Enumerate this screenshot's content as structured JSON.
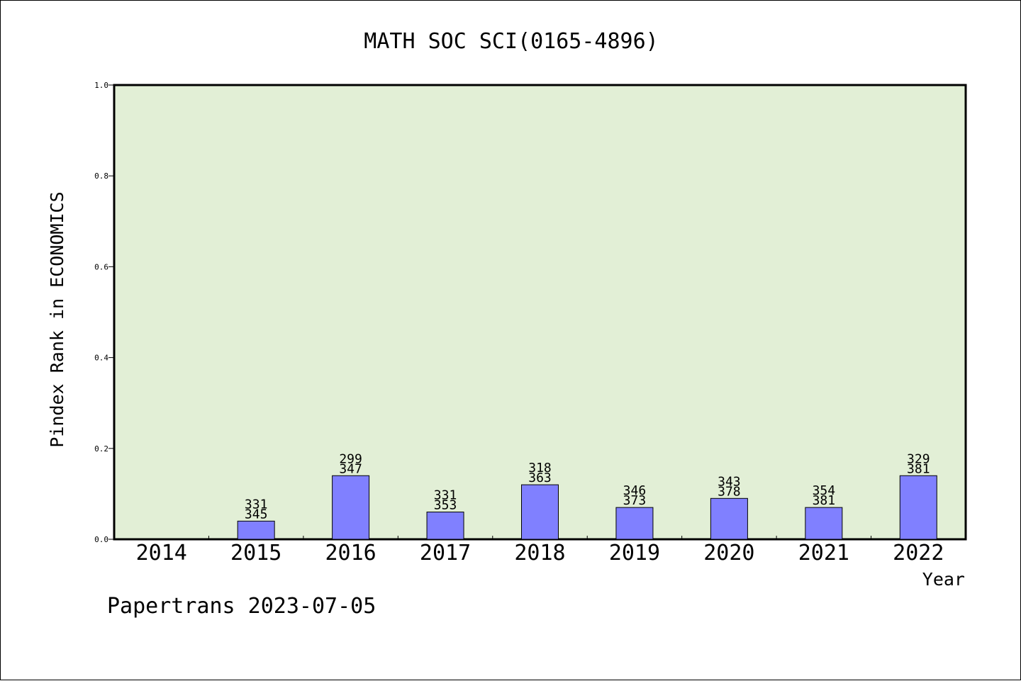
{
  "chart_data": {
    "type": "bar",
    "title": "MATH SOC SCI(0165-4896)",
    "xlabel": "Year",
    "ylabel": "Pindex Rank in ECONOMICS",
    "footer": "Papertrans 2023-07-05",
    "ylim": [
      0,
      1.0
    ],
    "yticks": [
      "0.0",
      "0.2",
      "0.4",
      "0.6",
      "0.8",
      "1.0"
    ],
    "categories": [
      "2014",
      "2015",
      "2016",
      "2017",
      "2018",
      "2019",
      "2020",
      "2021",
      "2022"
    ],
    "values": [
      0,
      0.04,
      0.14,
      0.06,
      0.12,
      0.07,
      0.09,
      0.07,
      0.14
    ],
    "label_top": [
      "",
      "331",
      "299",
      "331",
      "318",
      "346",
      "343",
      "354",
      "329"
    ],
    "label_bottom": [
      "",
      "345",
      "347",
      "353",
      "363",
      "373",
      "378",
      "381",
      "381"
    ],
    "grid": false,
    "colors": {
      "plot_background": "#e2efd6",
      "bar_fill": "#8080ff",
      "bar_stroke": "#000000"
    }
  }
}
